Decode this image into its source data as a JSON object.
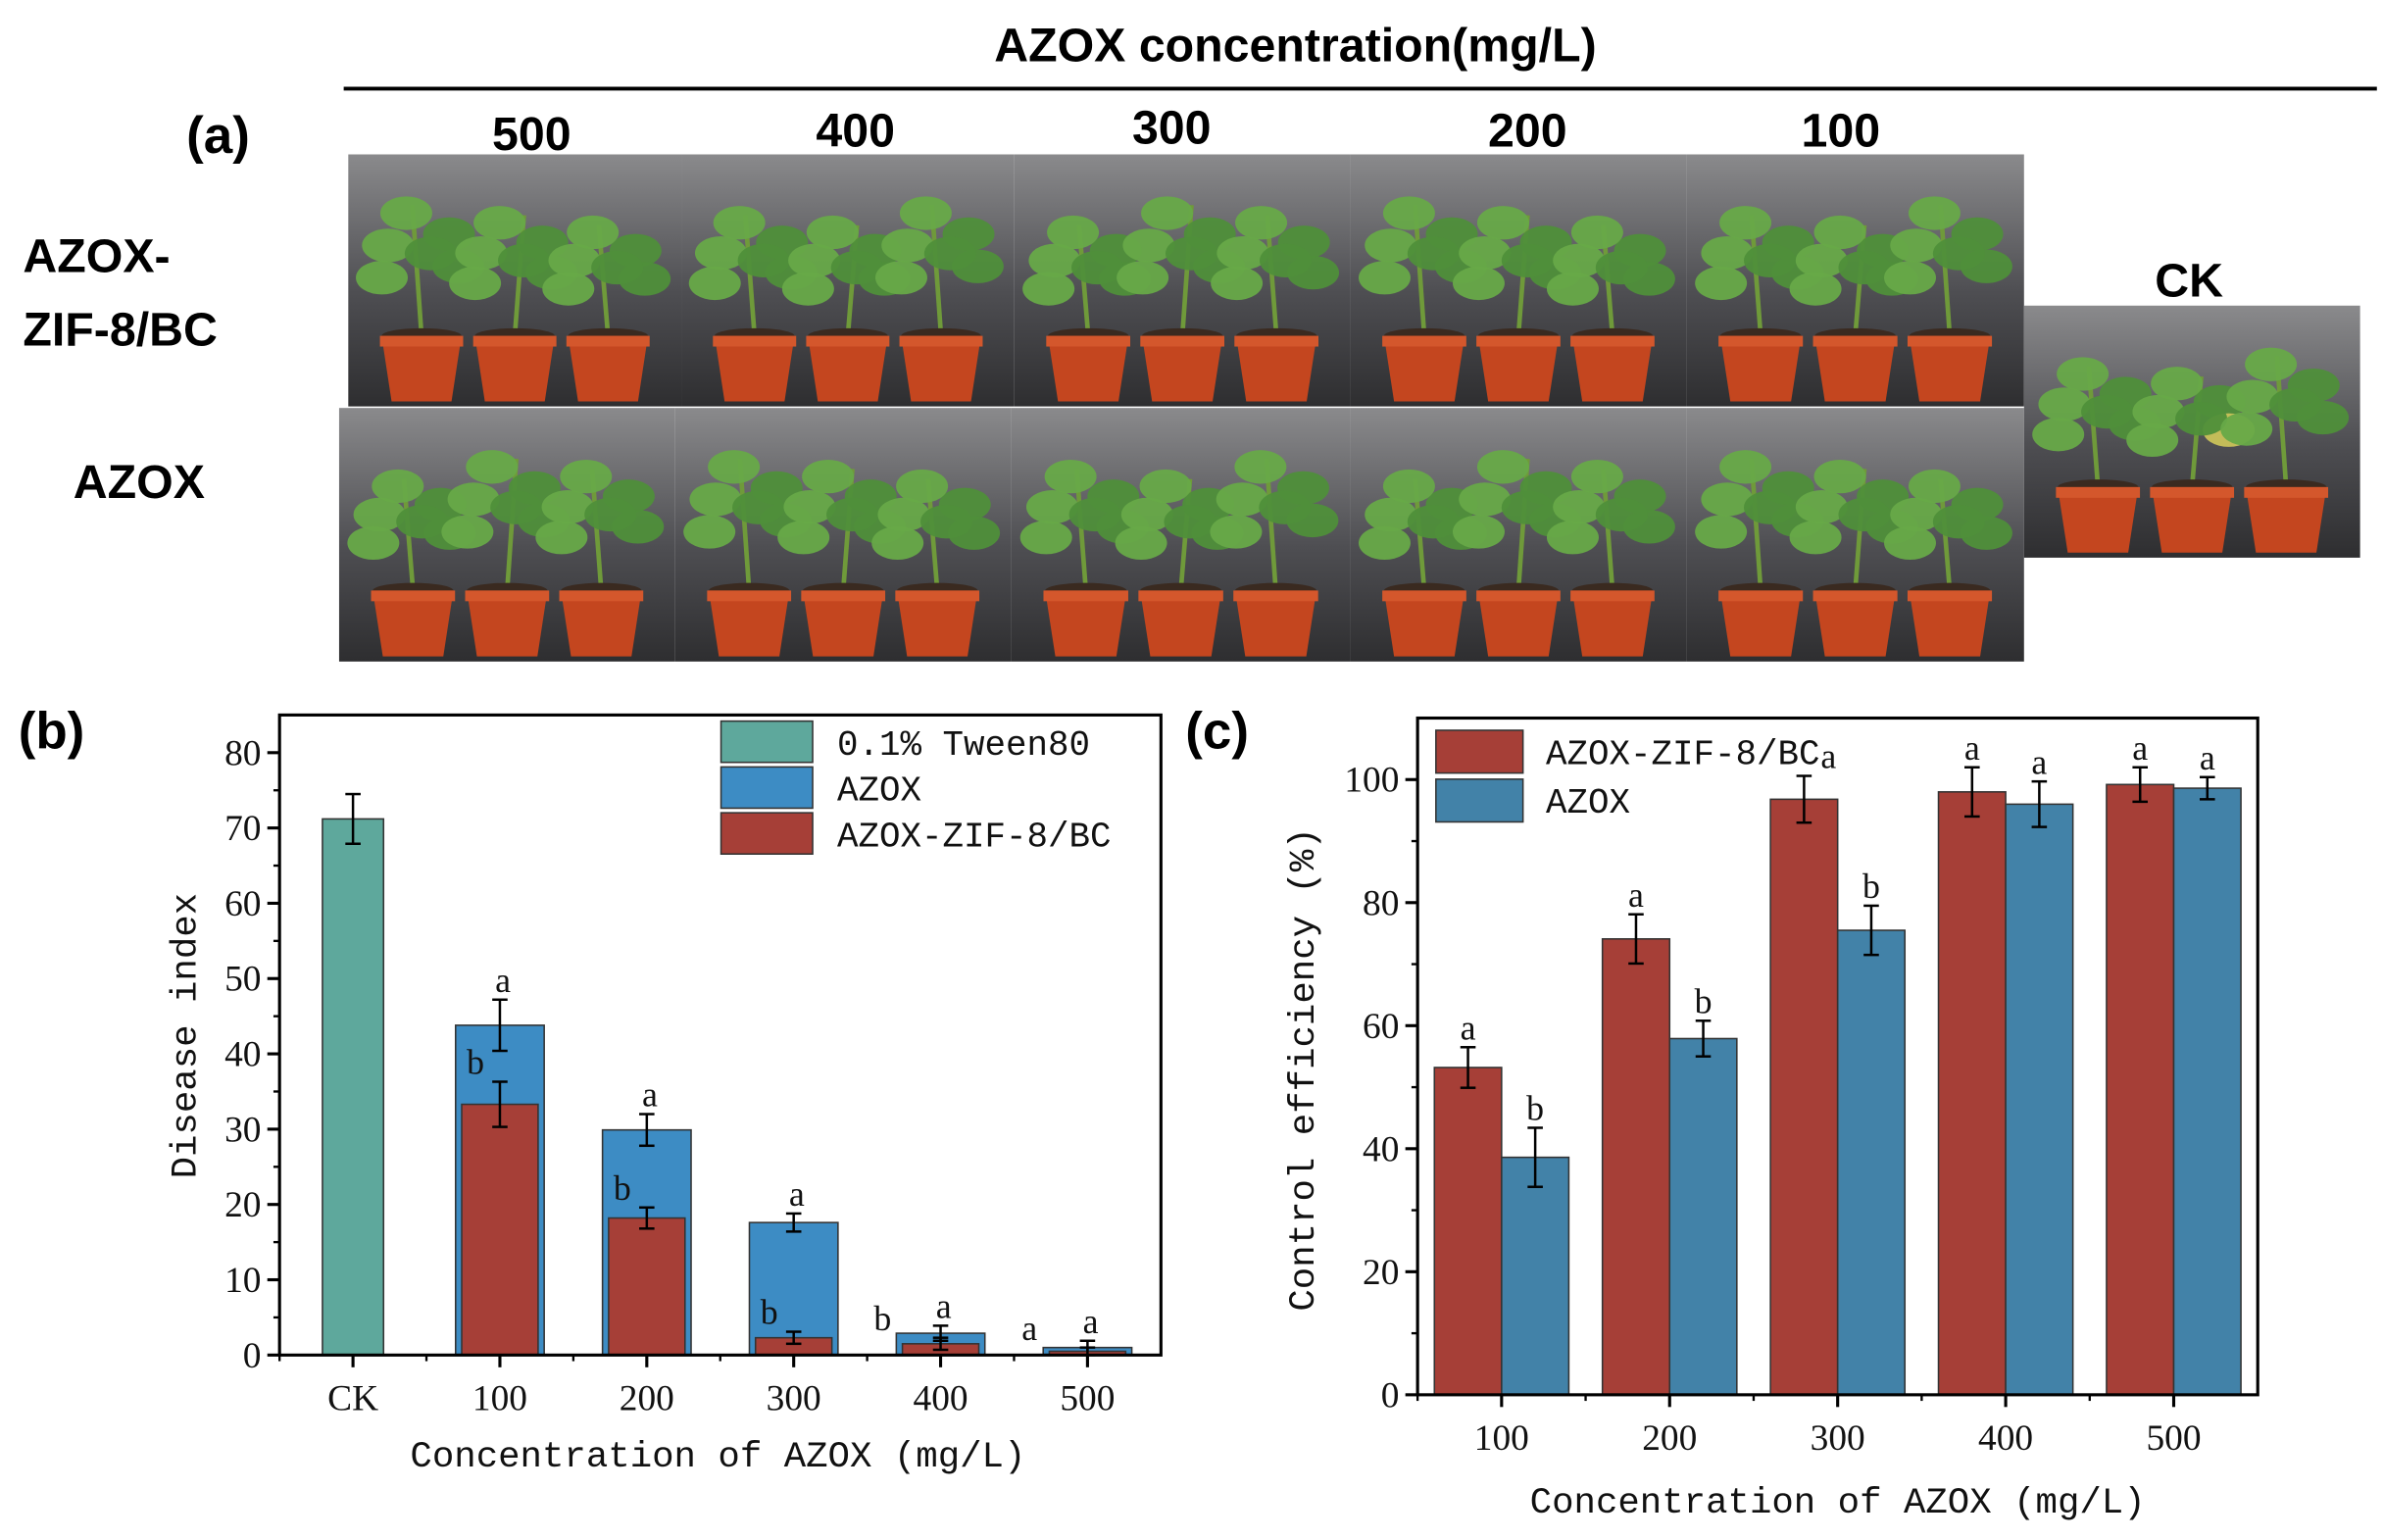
{
  "figure": {
    "header": "AZOX concentration(mg/L)",
    "panel_a": "(a)",
    "panel_b": "(b)",
    "panel_c": "(c)",
    "concentrations": [
      "500",
      "400",
      "300",
      "200",
      "100"
    ],
    "row_labels": [
      {
        "line1": "AZOX-",
        "line2": "ZIF-8/BC"
      },
      {
        "line1": "AZOX"
      }
    ],
    "ck_label": "CK"
  },
  "colors": {
    "tween": "#5ea89c",
    "azox_b": "#3d8cc4",
    "zif": "#a63f37",
    "azox_c": "#4282a8",
    "pot": "#c4461f"
  },
  "chart_data": [
    {
      "type": "bar",
      "panel": "(b)",
      "title": "",
      "xlabel": "Concentration of AZOX (mg/L)",
      "ylabel": "Disease index",
      "ylim": [
        0,
        85
      ],
      "yticks": [
        0,
        10,
        20,
        30,
        40,
        50,
        60,
        70,
        80
      ],
      "categories": [
        "CK",
        "100",
        "200",
        "300",
        "400",
        "500"
      ],
      "legend": "top-right",
      "series": [
        {
          "name": "0.1% Tween80",
          "values": [
            71.2,
            null,
            null,
            null,
            null,
            null
          ],
          "errors": [
            3.3,
            null,
            null,
            null,
            null,
            null
          ],
          "letters": [
            "",
            "",
            "",
            "",
            "",
            ""
          ]
        },
        {
          "name": "AZOX",
          "values": [
            null,
            43.8,
            29.9,
            17.6,
            2.9,
            1.0
          ],
          "errors": [
            null,
            3.4,
            2.1,
            1.2,
            1.0,
            0.9
          ],
          "letters": [
            "",
            "a",
            "a",
            "a",
            "a",
            "a"
          ]
        },
        {
          "name": "AZOX-ZIF-8/BC",
          "values": [
            null,
            33.3,
            18.2,
            2.3,
            1.5,
            0.5
          ],
          "errors": [
            null,
            3.0,
            1.4,
            0.8,
            0.8,
            0.5
          ],
          "letters": [
            "",
            "b",
            "b",
            "b",
            "b",
            "a"
          ]
        }
      ]
    },
    {
      "type": "bar",
      "panel": "(c)",
      "title": "",
      "xlabel": "Concentration of AZOX (mg/L)",
      "ylabel": "Control efficiency (%)",
      "ylim": [
        0,
        110
      ],
      "yticks": [
        0,
        20,
        40,
        60,
        80,
        100
      ],
      "categories": [
        "100",
        "200",
        "300",
        "400",
        "500"
      ],
      "legend": "top-left",
      "series": [
        {
          "name": "AZOX-ZIF-8/BC",
          "values": [
            53.2,
            74.1,
            96.8,
            98.0,
            99.2
          ],
          "errors": [
            3.3,
            4.0,
            3.8,
            4.0,
            2.8
          ],
          "letters": [
            "a",
            "a",
            "a",
            "a",
            "a"
          ]
        },
        {
          "name": "AZOX",
          "values": [
            38.6,
            57.9,
            75.5,
            96.0,
            98.6
          ],
          "errors": [
            4.8,
            2.9,
            4.0,
            3.7,
            1.8
          ],
          "letters": [
            "b",
            "b",
            "b",
            "a",
            "a"
          ]
        }
      ]
    }
  ]
}
